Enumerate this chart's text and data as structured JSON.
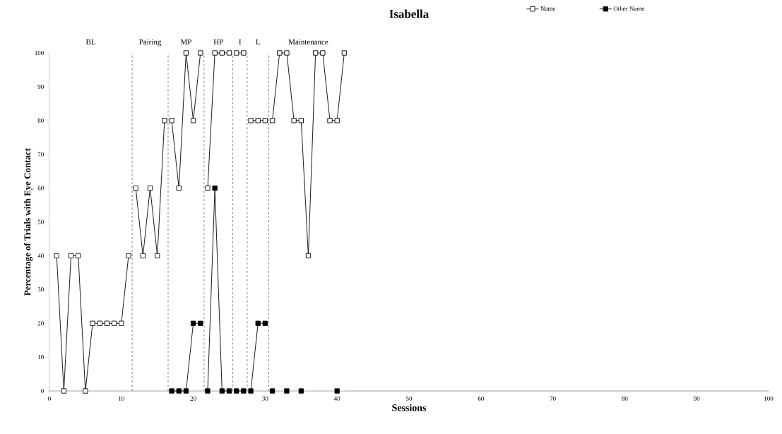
{
  "chart_data": {
    "type": "line",
    "title": "Isabella",
    "xlabel": "Sessions",
    "ylabel": "Percentage of Trials with Eye Contact",
    "xlim": [
      0,
      100
    ],
    "xticks": [
      0,
      10,
      20,
      30,
      40,
      50,
      60,
      70,
      80,
      90,
      100
    ],
    "ylim": [
      0,
      100
    ],
    "yticks": [
      0,
      10,
      20,
      30,
      40,
      50,
      60,
      70,
      80,
      90,
      100
    ],
    "grid": false,
    "legend": "top right",
    "marker": "square",
    "line_style": "solid",
    "series": [
      {
        "name": "Name",
        "color": "#ffffff",
        "x": [
          1,
          2,
          3,
          4,
          5,
          6,
          7,
          8,
          9,
          10,
          11,
          11.5,
          12,
          13,
          14,
          15,
          16,
          16.5,
          17,
          18,
          19,
          20,
          21,
          21.5,
          22,
          23,
          24,
          25,
          25.5,
          26,
          27,
          27.5,
          28,
          29,
          30,
          30.5,
          31,
          32,
          33,
          34,
          35,
          36,
          37,
          38,
          39,
          40,
          41
        ],
        "values": [
          40,
          0,
          40,
          40,
          0,
          20,
          20,
          20,
          20,
          20,
          40,
          null,
          60,
          40,
          60,
          40,
          80,
          null,
          80,
          60,
          100,
          80,
          100,
          null,
          60,
          100,
          100,
          100,
          null,
          100,
          100,
          null,
          80,
          80,
          80,
          null,
          80,
          100,
          100,
          80,
          80,
          40,
          100,
          100,
          80,
          80,
          100
        ]
      },
      {
        "name": "Other Name",
        "color": "#000000",
        "x": [
          17,
          18,
          19,
          20,
          21,
          21.5,
          22,
          23,
          24,
          25,
          25.5,
          26,
          27,
          27.5,
          28,
          29,
          30,
          30.5,
          31,
          32,
          33,
          34,
          35,
          36,
          40
        ],
        "values": [
          0,
          0,
          0,
          20,
          20,
          null,
          0,
          60,
          0,
          0,
          null,
          0,
          0,
          null,
          0,
          20,
          20,
          null,
          0,
          null,
          0,
          null,
          0,
          null,
          0
        ]
      }
    ],
    "ref_lines": [
      {
        "axis": "x",
        "value": 11.5,
        "line_style": "dashed",
        "color": "#808080"
      },
      {
        "axis": "x",
        "value": 16.5,
        "line_style": "dashed",
        "color": "#808080"
      },
      {
        "axis": "x",
        "value": 21.5,
        "line_style": "dashed",
        "color": "#808080"
      },
      {
        "axis": "x",
        "value": 25.5,
        "line_style": "dashed",
        "color": "#808080"
      },
      {
        "axis": "x",
        "value": 27.5,
        "line_style": "dashed",
        "color": "#808080"
      },
      {
        "axis": "x",
        "value": 30.5,
        "line_style": "dashed",
        "color": "#808080"
      }
    ],
    "bands": [
      {
        "axis": "x",
        "from": 0,
        "to": 11.5,
        "label": "BL",
        "color": "#ffffff"
      },
      {
        "axis": "x",
        "from": 11.5,
        "to": 16.5,
        "label": "Pairing",
        "color": "#ffffff"
      },
      {
        "axis": "x",
        "from": 16.5,
        "to": 21.5,
        "label": "MP",
        "color": "#ffffff"
      },
      {
        "axis": "x",
        "from": 21.5,
        "to": 25.5,
        "label": "HP",
        "color": "#ffffff"
      },
      {
        "axis": "x",
        "from": 25.5,
        "to": 27.5,
        "label": "I",
        "color": "#ffffff"
      },
      {
        "axis": "x",
        "from": 27.5,
        "to": 30.5,
        "label": "L",
        "color": "#ffffff"
      },
      {
        "axis": "x",
        "from": 30.5,
        "to": 41.5,
        "label": "Maintenance",
        "color": "#ffffff"
      }
    ]
  }
}
